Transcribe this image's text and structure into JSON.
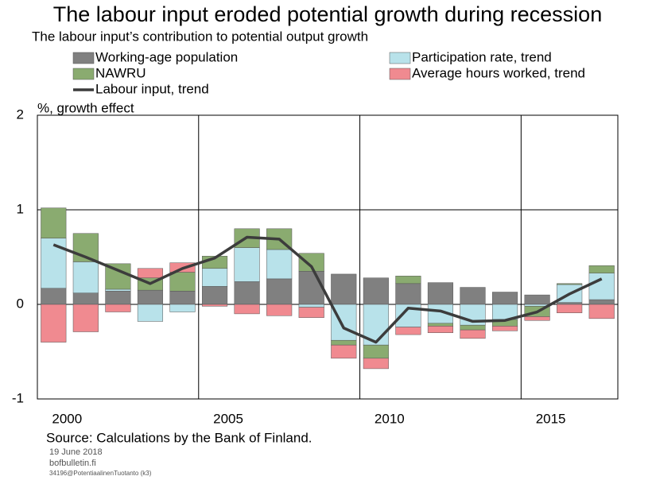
{
  "chart_data": {
    "type": "bar",
    "stacked": true,
    "title": "The labour input eroded potential growth during recession",
    "subtitle": "The labour input’s contribution to potential output growth",
    "y_label": "%, growth effect",
    "source": "Source: Calculations by the Bank of Finland.",
    "date": "19 June 2018",
    "site": "bofbulletin.fi",
    "code": "34196@PotentiaalinenTuotanto (k3)",
    "categories": [
      "2000",
      null,
      null,
      null,
      null,
      "2005",
      null,
      null,
      null,
      null,
      "2010",
      null,
      null,
      null,
      null,
      "2015",
      null,
      null
    ],
    "series": [
      {
        "name": "Working-age population",
        "color": "#808080",
        "values": [
          0.17,
          0.12,
          0.14,
          0.15,
          0.14,
          0.19,
          0.24,
          0.27,
          0.35,
          0.32,
          0.28,
          0.22,
          0.23,
          0.18,
          0.13,
          0.1,
          0.02,
          0.05
        ]
      },
      {
        "name": "Participation rate, trend",
        "color": "#b8e2ea",
        "values": [
          0.53,
          0.33,
          0.02,
          -0.18,
          -0.08,
          0.19,
          0.36,
          0.31,
          -0.03,
          -0.38,
          -0.43,
          -0.24,
          -0.2,
          -0.22,
          -0.16,
          -0.02,
          0.19,
          0.28
        ]
      },
      {
        "name": "NAWRU",
        "color": "#8aab70",
        "values": [
          0.32,
          0.3,
          0.27,
          0.13,
          0.2,
          0.13,
          0.2,
          0.22,
          0.19,
          -0.05,
          -0.14,
          0.08,
          -0.03,
          -0.05,
          -0.07,
          -0.11,
          0.01,
          0.08
        ]
      },
      {
        "name": "Average hours worked, trend",
        "color": "#f08a90",
        "values": [
          -0.4,
          -0.29,
          -0.08,
          0.1,
          0.1,
          -0.02,
          -0.1,
          -0.12,
          -0.11,
          -0.14,
          -0.11,
          -0.08,
          -0.07,
          -0.09,
          -0.05,
          -0.04,
          -0.09,
          -0.15
        ]
      },
      {
        "name": "Labour input, trend",
        "type": "line",
        "color": "#3c3c3c",
        "values": [
          0.63,
          0.5,
          0.36,
          0.22,
          0.38,
          0.49,
          0.71,
          0.69,
          0.4,
          -0.25,
          -0.4,
          -0.04,
          -0.07,
          -0.18,
          -0.17,
          -0.08,
          0.11,
          0.27
        ]
      }
    ],
    "ylim": [
      -1,
      2
    ],
    "yticks": [
      -1,
      0,
      1,
      2
    ],
    "grid": true,
    "legend": "top"
  }
}
